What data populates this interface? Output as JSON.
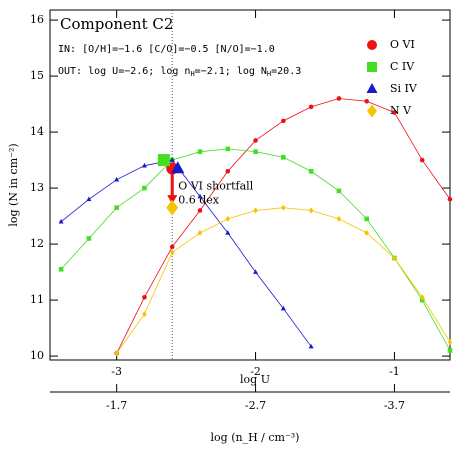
{
  "chart_data": {
    "type": "line",
    "title": "Component C2",
    "info_in": "IN: [O/H]=−1.6 [C/O]=−0.5 [N/O]=−1.0",
    "info_out": [
      "OUT: log U=−2.6; log n",
      "H",
      "=−2.1; log N",
      "H",
      "=20.3"
    ],
    "xlabel": "log U",
    "x2label": "log (n_H / cm⁻³)",
    "ylabel": "log (N in cm⁻²)",
    "x": [
      -3.4,
      -3.2,
      -3.0,
      -2.8,
      -2.6,
      -2.4,
      -2.2,
      -2.0,
      -1.8,
      -1.6,
      -1.4,
      -1.2,
      -1.0,
      -0.8,
      -0.6
    ],
    "xlim": [
      -3.48,
      -0.6
    ],
    "xticks": [
      -3,
      -2,
      -1
    ],
    "x2lim": [
      -1.22,
      -4.1
    ],
    "x2ticks": [
      -1.7,
      -2.7,
      -3.7
    ],
    "ylim": [
      9.93,
      16.18
    ],
    "yticks": [
      10,
      11,
      12,
      13,
      14,
      15,
      16
    ],
    "reference_x": -2.6,
    "series": [
      {
        "name": "O VI",
        "color": "#ee1111",
        "marker": "circle",
        "values": [
          null,
          null,
          10.05,
          11.05,
          11.95,
          12.6,
          13.3,
          13.85,
          14.2,
          14.45,
          14.6,
          14.55,
          14.35,
          13.5,
          12.8
        ],
        "observed": {
          "x": -2.6,
          "y": 13.35
        }
      },
      {
        "name": "C IV",
        "color": "#44dd22",
        "marker": "square",
        "values": [
          11.55,
          12.1,
          12.65,
          13.0,
          13.5,
          13.65,
          13.7,
          13.65,
          13.55,
          13.3,
          12.95,
          12.45,
          11.75,
          11.0,
          10.1
        ],
        "observed": {
          "x": -2.66,
          "y": 13.5
        }
      },
      {
        "name": "Si IV",
        "color": "#1a1acc",
        "marker": "triangle",
        "values": [
          12.4,
          12.8,
          13.15,
          13.4,
          13.5,
          12.85,
          12.2,
          11.5,
          10.85,
          10.17,
          null,
          null,
          null,
          null,
          null
        ],
        "observed": {
          "x": -2.56,
          "y": 13.35
        }
      },
      {
        "name": "N V",
        "color": "#f5c400",
        "marker": "diamond",
        "values": [
          null,
          null,
          10.05,
          10.75,
          11.85,
          12.2,
          12.45,
          12.6,
          12.65,
          12.6,
          12.45,
          12.2,
          11.75,
          11.05,
          10.25
        ],
        "observed": {
          "x": -2.6,
          "y": 12.65
        }
      }
    ],
    "arrow": {
      "x": -2.6,
      "from": 13.35,
      "to": 12.75,
      "color": "#ee1111"
    },
    "annotation": [
      "O VI shortfall",
      "0.6 dex"
    ]
  }
}
